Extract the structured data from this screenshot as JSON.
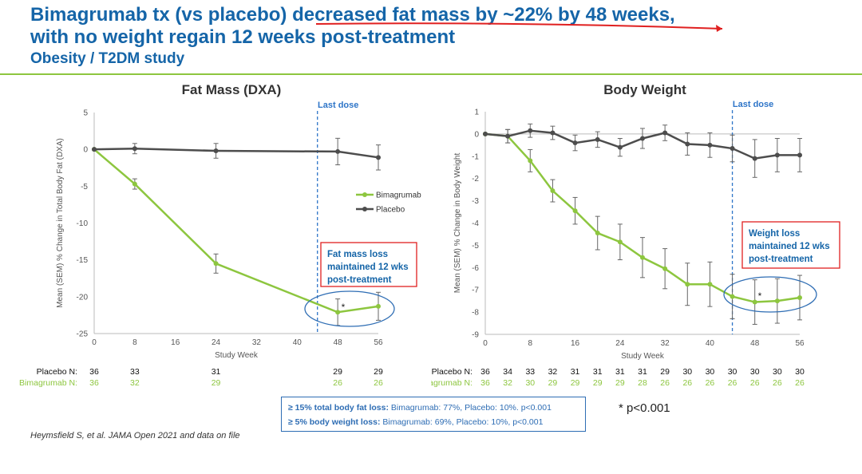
{
  "header": {
    "title_part1": "Bimagrumab tx (vs placebo) ",
    "title_part2": "decreased fat mass by ~22% by 48 weeks,",
    "title_line2": "with no weight regain 12 weeks post-treatment",
    "subtitle": "Obesity / T2DM study"
  },
  "colors": {
    "bimagrumab": "#8dc63f",
    "placebo": "#4d4d4d",
    "title": "#1565a8",
    "dose_line": "#2e75c8",
    "callout_border": "#e02020"
  },
  "chart_data": [
    {
      "type": "line",
      "title": "Fat Mass (DXA)",
      "xlabel": "Study Week",
      "ylabel": "Mean (SEM) % Change in Total Body Fat (DXA)",
      "xlim": [
        0,
        56
      ],
      "ylim": [
        -25,
        5
      ],
      "xticks": [
        0,
        8,
        16,
        24,
        32,
        40,
        48,
        56
      ],
      "yticks": [
        5,
        0,
        -5,
        -10,
        -15,
        -20,
        -25
      ],
      "legend_position": "right",
      "last_dose_week": 44,
      "last_dose_label": "Last dose",
      "callout": [
        "Fat mass loss",
        "maintained 12 wks",
        "post-treatment"
      ],
      "significance_mark": "*",
      "series": [
        {
          "name": "Bimagrumab",
          "x": [
            0,
            8,
            24,
            48,
            56
          ],
          "y": [
            0,
            -4.7,
            -15.5,
            -22.1,
            -21.3
          ],
          "err": [
            0,
            0.7,
            1.3,
            1.8,
            1.9
          ]
        },
        {
          "name": "Placebo",
          "x": [
            0,
            8,
            24,
            48,
            56
          ],
          "y": [
            0,
            0.1,
            -0.2,
            -0.3,
            -1.1
          ],
          "err": [
            0,
            0.7,
            1.0,
            1.8,
            1.7
          ]
        }
      ],
      "n_table": {
        "placebo_label": "Placebo N:",
        "bimagrumab_label": "Bimagrumab N:",
        "weeks": [
          0,
          8,
          24,
          48,
          56
        ],
        "placebo": [
          "36",
          "33",
          "31",
          "29",
          "29"
        ],
        "bimagrumab": [
          "36",
          "32",
          "29",
          "26",
          "26"
        ]
      }
    },
    {
      "type": "line",
      "title": "Body Weight",
      "xlabel": "Study Week",
      "ylabel": "Mean (SEM) % Change in Body Weight",
      "xlim": [
        0,
        56
      ],
      "ylim": [
        -9,
        1
      ],
      "xticks": [
        0,
        8,
        16,
        24,
        32,
        40,
        48,
        56
      ],
      "yticks": [
        1,
        0,
        -1,
        -2,
        -3,
        -4,
        -5,
        -6,
        -7,
        -8,
        -9
      ],
      "last_dose_week": 44,
      "last_dose_label": "Last dose",
      "callout": [
        "Weight loss",
        "maintained 12 wks",
        "post-treatment"
      ],
      "significance_mark": "*",
      "series": [
        {
          "name": "Bimagrumab",
          "x": [
            0,
            4,
            8,
            12,
            16,
            20,
            24,
            28,
            32,
            36,
            40,
            44,
            48,
            52,
            56
          ],
          "y": [
            0,
            -0.1,
            -1.2,
            -2.55,
            -3.45,
            -4.45,
            -4.85,
            -5.55,
            -6.05,
            -6.75,
            -6.75,
            -7.3,
            -7.55,
            -7.5,
            -7.35
          ],
          "err": [
            0,
            0.3,
            0.5,
            0.5,
            0.6,
            0.75,
            0.8,
            0.9,
            0.9,
            0.95,
            1.0,
            1.0,
            1.0,
            1.0,
            1.0
          ]
        },
        {
          "name": "Placebo",
          "x": [
            0,
            4,
            8,
            12,
            16,
            20,
            24,
            28,
            32,
            36,
            40,
            44,
            48,
            52,
            56
          ],
          "y": [
            0,
            -0.1,
            0.15,
            0.05,
            -0.4,
            -0.25,
            -0.6,
            -0.2,
            0.05,
            -0.45,
            -0.5,
            -0.65,
            -1.1,
            -0.95,
            -0.95
          ],
          "err": [
            0,
            0.3,
            0.3,
            0.3,
            0.35,
            0.35,
            0.4,
            0.45,
            0.35,
            0.5,
            0.55,
            0.6,
            0.85,
            0.75,
            0.75
          ]
        }
      ],
      "n_table": {
        "placebo_label": "Placebo N:",
        "bimagrumab_label": "Bimagrumab N:",
        "weeks": [
          0,
          4,
          8,
          12,
          16,
          20,
          24,
          28,
          32,
          36,
          40,
          44,
          48,
          52,
          56
        ],
        "placebo": [
          "36",
          "34",
          "33",
          "32",
          "31",
          "31",
          "31",
          "31",
          "29",
          "30",
          "30",
          "30",
          "30",
          "30",
          "30"
        ],
        "bimagrumab": [
          "36",
          "32",
          "30",
          "29",
          "29",
          "29",
          "29",
          "28",
          "26",
          "26",
          "26",
          "26",
          "26",
          "26",
          "26"
        ]
      }
    }
  ],
  "footer": {
    "stat1_bold": "≥ 15% total body fat loss:",
    "stat1_rest": " Bimagrumab: 77%, Placebo: 10%.  p<0.001",
    "stat2_bold": "≥ 5% body weight loss:",
    "stat2_rest": " Bimagrumab: 69%, Placebo: 10%, p<0.001",
    "pvalue_note": "* p<0.001",
    "citation": "Heymsfield S, et al. JAMA Open 2021 and data on file"
  }
}
